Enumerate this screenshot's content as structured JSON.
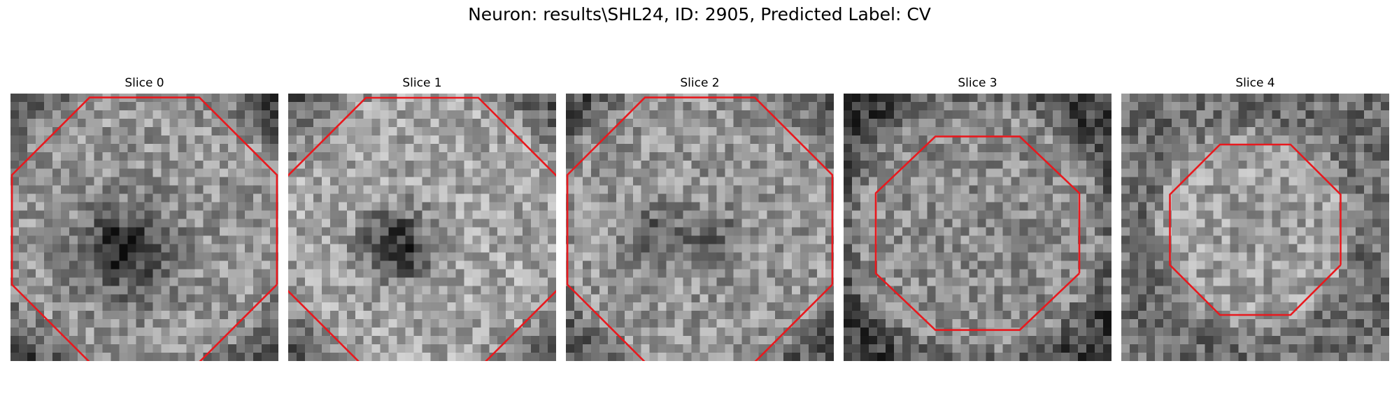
{
  "figure": {
    "title": "Neuron: results\\SHL24, ID: 2905, Predicted Label: CV"
  },
  "slices": [
    {
      "title": "Slice 0"
    },
    {
      "title": "Slice 1"
    },
    {
      "title": "Slice 2"
    },
    {
      "title": "Slice 3"
    },
    {
      "title": "Slice 4"
    }
  ],
  "colors": {
    "contour": "#e8191e",
    "background": "#ffffff"
  }
}
